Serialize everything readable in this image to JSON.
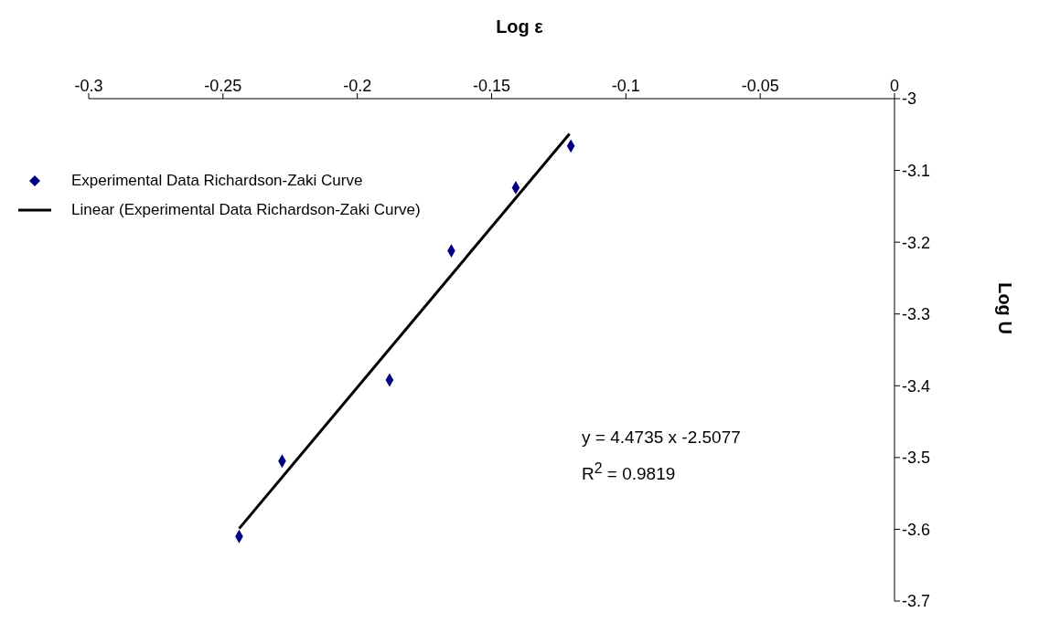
{
  "chart_data": {
    "type": "scatter",
    "xlabel": "Log ε",
    "ylabel": "Log U",
    "xlim": [
      -0.3,
      0
    ],
    "xticks": [
      -0.3,
      -0.25,
      -0.2,
      -0.15,
      -0.1,
      -0.05,
      0
    ],
    "ylim": [
      -3.7,
      -3
    ],
    "yticks": [
      -3,
      -3.1,
      -3.2,
      -3.3,
      -3.4,
      -3.5,
      -3.6,
      -3.7
    ],
    "series": [
      {
        "name": "Experimental Data Richardson-Zaki Curve",
        "marker": "diamond",
        "color": "#000080",
        "x": [
          -0.244,
          -0.228,
          -0.188,
          -0.165,
          -0.141,
          -0.1205
        ],
        "values": [
          -3.61,
          -3.505,
          -3.392,
          -3.212,
          -3.124,
          -3.066
        ]
      },
      {
        "name": "Linear (Experimental Data Richardson-Zaki Curve)",
        "type": "line",
        "color": "#000000",
        "x": [
          -0.244,
          -0.121
        ],
        "values": [
          -3.599,
          -3.049
        ]
      }
    ],
    "annotations": [
      "y = 4.4735 x -2.5077",
      "R$^{2}$ = 0.9819"
    ],
    "line_style": "solid",
    "legend": "left"
  }
}
